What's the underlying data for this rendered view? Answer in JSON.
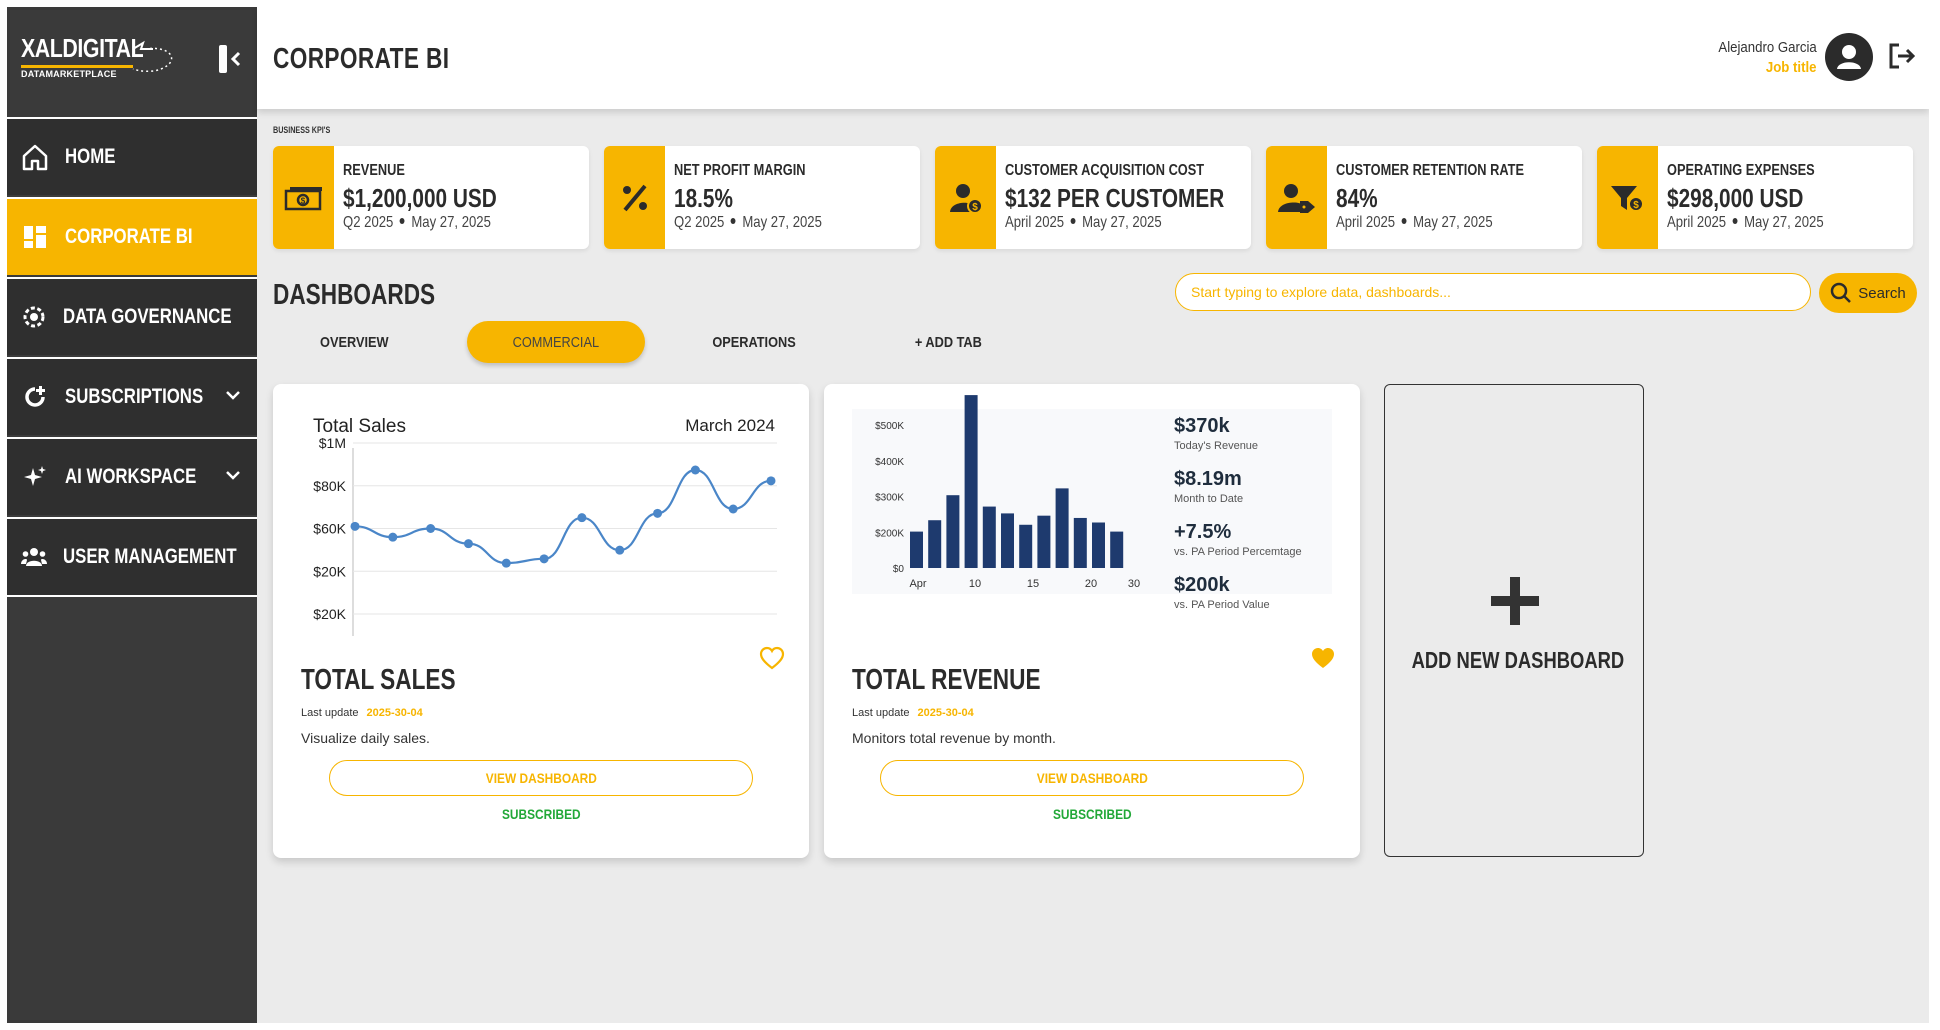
{
  "brand": {
    "name": "XALDIGITAL",
    "sub": "DATAMARKETPLACE"
  },
  "header": {
    "title": "CORPORATE BI",
    "user_name": "Alejandro Garcia",
    "user_role": "Job title"
  },
  "sidebar": {
    "items": [
      {
        "label": "HOME",
        "icon": "home-icon",
        "active": false
      },
      {
        "label": "CORPORATE BI",
        "icon": "dashboard-grid-icon",
        "active": true
      },
      {
        "label": "DATA GOVERNANCE",
        "icon": "governance-gear-icon",
        "active": false
      },
      {
        "label": "SUBSCRIPTIONS",
        "icon": "subscription-refresh-icon",
        "active": false,
        "expandable": true
      },
      {
        "label": "AI WORKSPACE",
        "icon": "ai-sparkle-icon",
        "active": false,
        "expandable": true
      },
      {
        "label": "USER MANAGEMENT",
        "icon": "users-icon",
        "active": false
      }
    ]
  },
  "kpi": {
    "caption": "BUSINESS KPI'S",
    "cards": [
      {
        "title": "REVENUE",
        "value": "$1,200,000 USD",
        "period": "Q2 2025",
        "date": "May 27, 2025",
        "icon": "cash-icon"
      },
      {
        "title": "NET PROFIT MARGIN",
        "value": "18.5%",
        "period": "Q2 2025",
        "date": "May 27, 2025",
        "icon": "percent-icon"
      },
      {
        "title": "CUSTOMER ACQUISITION COST",
        "value": "$132 PER CUSTOMER",
        "period": "April 2025",
        "date": "May 27, 2025",
        "icon": "user-dollar-icon"
      },
      {
        "title": "CUSTOMER RETENTION RATE",
        "value": "84%",
        "period": "April 2025",
        "date": "May 27, 2025",
        "icon": "user-tag-icon"
      },
      {
        "title": "OPERATING EXPENSES",
        "value": "$298,000 USD",
        "period": "April 2025",
        "date": "May 27, 2025",
        "icon": "funnel-dollar-icon"
      }
    ]
  },
  "dashboards": {
    "title": "DASHBOARDS",
    "search_placeholder": "Start typing to explore data, dashboards...",
    "search_label": "Search",
    "tabs": [
      {
        "label": "OVERVIEW",
        "active": false
      },
      {
        "label": "COMMERCIAL",
        "active": true
      },
      {
        "label": "OPERATIONS",
        "active": false
      },
      {
        "label": "+ ADD TAB",
        "active": false
      }
    ],
    "cards": [
      {
        "title": "TOTAL SALES",
        "update_label": "Last update",
        "update_date": "2025-30-04",
        "description": "Visualize daily sales.",
        "button": "VIEW DASHBOARD",
        "status": "SUBSCRIBED",
        "favorite": false
      },
      {
        "title": "TOTAL REVENUE",
        "update_label": "Last update",
        "update_date": "2025-30-04",
        "description": "Monitors total revenue by month.",
        "button": "VIEW DASHBOARD",
        "status": "SUBSCRIBED",
        "favorite": true
      }
    ],
    "add_label": "ADD NEW DASHBOARD"
  },
  "chart_data": [
    {
      "type": "line",
      "title": "Total Sales",
      "subtitle": "March 2024",
      "y_tick_labels": [
        "$1M",
        "$80K",
        "$60K",
        "$20K",
        "$20K"
      ],
      "values": [
        62,
        57,
        61,
        54,
        45,
        47,
        66,
        51,
        68,
        88,
        70,
        83
      ],
      "ylim": [
        10,
        100
      ],
      "grid": true,
      "color": "#4a86c8"
    },
    {
      "type": "bar",
      "x_tick_labels": [
        "Apr",
        "10",
        "15",
        "20",
        "30"
      ],
      "y_tick_labels": [
        "$500K",
        "$400K",
        "$300K",
        "$200K",
        "$0"
      ],
      "values": [
        80,
        105,
        160,
        380,
        135,
        120,
        95,
        115,
        175,
        110,
        100,
        80
      ],
      "ylim": [
        0,
        400
      ],
      "color": "#1e3a6e",
      "stats": [
        {
          "value": "$370k",
          "label": "Today's Revenue"
        },
        {
          "value": "$8.19m",
          "label": "Month to Date"
        },
        {
          "value": "+7.5%",
          "label": "vs. PA Period Percemtage"
        },
        {
          "value": "$200k",
          "label": "vs. PA Period Value"
        }
      ]
    }
  ],
  "colors": {
    "accent": "#f7b500",
    "sidebar": "#2f2f2f",
    "success": "#22a838",
    "line": "#4a86c8",
    "bar": "#1e3a6e"
  }
}
